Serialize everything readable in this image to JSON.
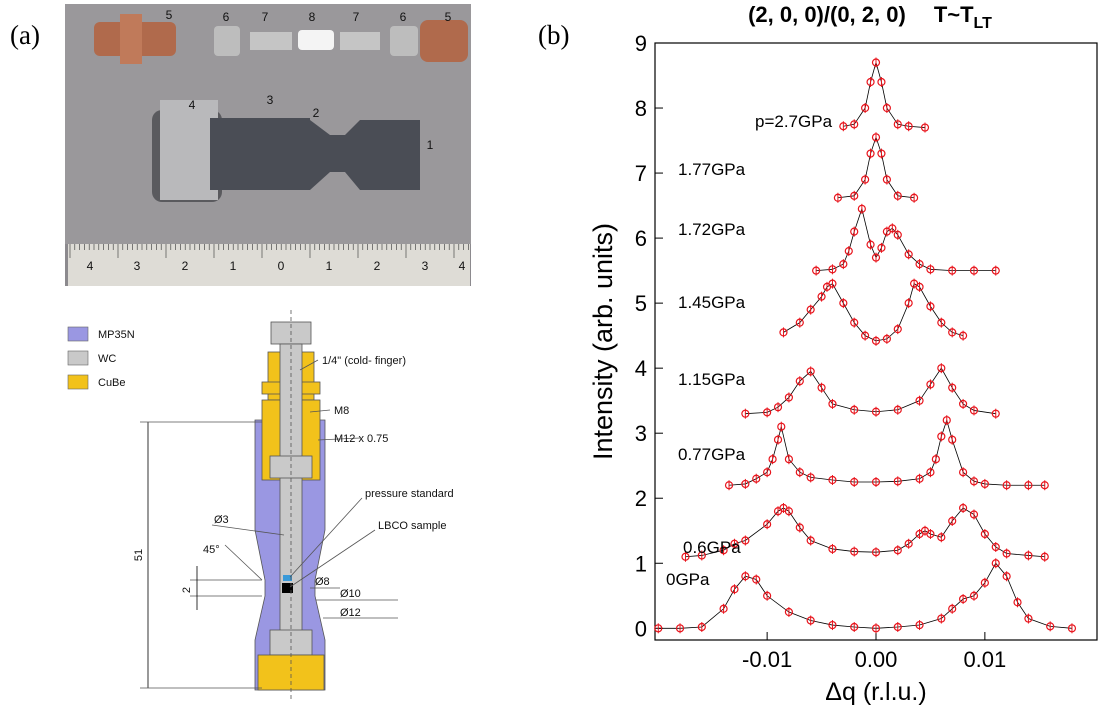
{
  "panel_labels": [
    "(a)",
    "(b)"
  ],
  "photo": {
    "part_labels": [
      "5",
      "6",
      "7",
      "8",
      "7",
      "6",
      "5",
      "4",
      "3",
      "2",
      "1"
    ],
    "ruler_labels": [
      "4",
      "3",
      "2",
      "1",
      "0",
      "1",
      "2",
      "3",
      "4"
    ]
  },
  "schematic": {
    "legend": [
      {
        "name": "MP35N",
        "color": "#9a97e2"
      },
      {
        "name": "WC",
        "color": "#c9c9c9"
      },
      {
        "name": "CuBe",
        "color": "#f2c21b"
      }
    ],
    "labels": {
      "cold_finger": "1/4\" (cold- finger)",
      "m8": "M8",
      "m12": "M12 x 0.75",
      "pressure_standard": "pressure standard",
      "sample": "LBCO sample",
      "d3": "Ø3",
      "angle": "45°",
      "gap": "2",
      "d8": "Ø8",
      "d10": "Ø10",
      "d12": "Ø12",
      "length": "51"
    }
  },
  "chart_data": {
    "type": "line",
    "title": "(2, 0, 0)/(0, 2, 0)",
    "title_temp": "T~T",
    "title_temp_sub": "LT",
    "x_label": "Δq  (r.l.u.)",
    "y_label": "Intensity  (arb. units)",
    "xlim": [
      -0.0203,
      0.0203
    ],
    "ylim": [
      -0.18,
      9
    ],
    "xticks": [
      -0.01,
      {
        "value": 0,
        "label": "0.00"
      },
      0.01
    ],
    "yticks": [
      0,
      1,
      2,
      3,
      4,
      5,
      6,
      7,
      8,
      9
    ],
    "color": "#e8141c",
    "series": [
      {
        "name": "0GPa",
        "x": [
          -0.02,
          -0.018,
          -0.016,
          -0.014,
          -0.013,
          -0.012,
          -0.011,
          -0.01,
          -0.008,
          -0.006,
          -0.004,
          -0.002,
          0,
          0.002,
          0.004,
          0.006,
          0.007,
          0.008,
          0.009,
          0.01,
          0.011,
          0.012,
          0.013,
          0.014,
          0.016,
          0.018
        ],
        "values": [
          0,
          0,
          0.02,
          0.3,
          0.6,
          0.8,
          0.75,
          0.5,
          0.25,
          0.12,
          0.05,
          0.02,
          0,
          0.02,
          0.05,
          0.15,
          0.3,
          0.45,
          0.5,
          0.7,
          1.0,
          0.8,
          0.4,
          0.15,
          0.03,
          0
        ]
      },
      {
        "name": "0.6GPa",
        "x": [
          -0.0175,
          -0.016,
          -0.014,
          -0.013,
          -0.012,
          -0.01,
          -0.009,
          -0.0085,
          -0.008,
          -0.007,
          -0.006,
          -0.004,
          -0.002,
          0,
          0.002,
          0.003,
          0.004,
          0.0045,
          0.005,
          0.006,
          0.007,
          0.008,
          0.009,
          0.01,
          0.011,
          0.012,
          0.014,
          0.0155
        ],
        "values": [
          1.1,
          1.12,
          1.2,
          1.3,
          1.35,
          1.6,
          1.8,
          1.85,
          1.8,
          1.55,
          1.35,
          1.22,
          1.18,
          1.17,
          1.2,
          1.3,
          1.45,
          1.5,
          1.45,
          1.4,
          1.65,
          1.85,
          1.75,
          1.45,
          1.25,
          1.15,
          1.12,
          1.1
        ]
      },
      {
        "name": "0.77GPa",
        "x": [
          -0.0135,
          -0.012,
          -0.011,
          -0.01,
          -0.0095,
          -0.009,
          -0.0087,
          -0.008,
          -0.007,
          -0.006,
          -0.004,
          -0.002,
          0,
          0.002,
          0.004,
          0.005,
          0.0055,
          0.006,
          0.0065,
          0.007,
          0.008,
          0.009,
          0.01,
          0.012,
          0.014,
          0.0155
        ],
        "values": [
          2.2,
          2.22,
          2.3,
          2.4,
          2.6,
          2.9,
          3.1,
          2.6,
          2.4,
          2.32,
          2.28,
          2.25,
          2.25,
          2.26,
          2.3,
          2.4,
          2.6,
          2.95,
          3.2,
          2.9,
          2.4,
          2.26,
          2.22,
          2.2,
          2.2,
          2.2
        ]
      },
      {
        "name": "1.15GPa",
        "x": [
          -0.012,
          -0.01,
          -0.009,
          -0.008,
          -0.007,
          -0.006,
          -0.005,
          -0.004,
          -0.002,
          0,
          0.002,
          0.004,
          0.005,
          0.006,
          0.007,
          0.008,
          0.009,
          0.011
        ],
        "values": [
          3.3,
          3.32,
          3.4,
          3.55,
          3.8,
          3.95,
          3.7,
          3.45,
          3.36,
          3.33,
          3.36,
          3.5,
          3.75,
          4.0,
          3.7,
          3.45,
          3.35,
          3.3
        ]
      },
      {
        "name": "1.45GPa",
        "x": [
          -0.0085,
          -0.007,
          -0.006,
          -0.005,
          -0.0045,
          -0.004,
          -0.003,
          -0.002,
          -0.001,
          0,
          0.001,
          0.002,
          0.003,
          0.0035,
          0.004,
          0.005,
          0.006,
          0.007,
          0.008
        ],
        "values": [
          4.55,
          4.7,
          4.9,
          5.1,
          5.25,
          5.3,
          5.0,
          4.7,
          4.5,
          4.42,
          4.45,
          4.6,
          5.0,
          5.3,
          5.25,
          4.95,
          4.7,
          4.55,
          4.5
        ]
      },
      {
        "name": "1.72GPa",
        "x": [
          -0.0055,
          -0.004,
          -0.003,
          -0.0025,
          -0.002,
          -0.0013,
          -0.0005,
          0,
          0.0005,
          0.001,
          0.0015,
          0.002,
          0.003,
          0.004,
          0.005,
          0.007,
          0.009,
          0.011
        ],
        "values": [
          5.5,
          5.52,
          5.6,
          5.8,
          6.1,
          6.45,
          5.9,
          5.7,
          5.85,
          6.1,
          6.15,
          6.05,
          5.75,
          5.6,
          5.52,
          5.5,
          5.5,
          5.5
        ]
      },
      {
        "name": "1.77GPa",
        "x": [
          -0.0035,
          -0.002,
          -0.001,
          -0.0005,
          0,
          0.0005,
          0.001,
          0.002,
          0.0035
        ],
        "values": [
          6.62,
          6.65,
          6.9,
          7.3,
          7.55,
          7.3,
          6.9,
          6.65,
          6.62
        ]
      },
      {
        "name": "p=2.7GPa",
        "x": [
          -0.003,
          -0.002,
          -0.001,
          -0.0005,
          0,
          0.0005,
          0.001,
          0.002,
          0.003,
          0.0045
        ],
        "values": [
          7.72,
          7.75,
          8.0,
          8.4,
          8.7,
          8.4,
          8.0,
          7.75,
          7.72,
          7.7
        ]
      }
    ]
  }
}
